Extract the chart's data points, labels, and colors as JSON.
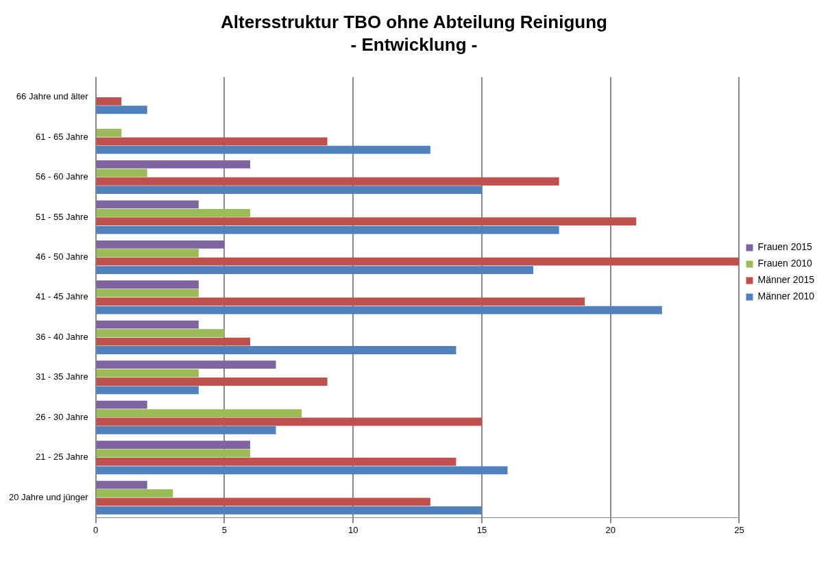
{
  "chart_data": {
    "type": "bar",
    "orientation": "horizontal",
    "title": "Altersstruktur TBO ohne Abteilung Reinigung",
    "subtitle": "- Entwicklung -",
    "categories": [
      "66 Jahre und älter",
      "61 - 65 Jahre",
      "56 - 60 Jahre",
      "51 - 55 Jahre",
      "46 - 50 Jahre",
      "41 - 45 Jahre",
      "36 - 40 Jahre",
      "31 - 35 Jahre",
      "26 - 30 Jahre",
      "21 - 25 Jahre",
      "20 Jahre und jünger"
    ],
    "series": [
      {
        "name": "Frauen 2015",
        "color": "#8064a2",
        "values": [
          0,
          0,
          6,
          4,
          5,
          4,
          4,
          7,
          2,
          6,
          2
        ]
      },
      {
        "name": "Frauen 2010",
        "color": "#9bbb59",
        "values": [
          0,
          1,
          2,
          6,
          4,
          4,
          5,
          4,
          8,
          6,
          3
        ]
      },
      {
        "name": "Männer 2015",
        "color": "#c0504d",
        "values": [
          1,
          9,
          18,
          21,
          25,
          19,
          6,
          9,
          15,
          14,
          13
        ]
      },
      {
        "name": "Männer 2010",
        "color": "#4f81bd",
        "values": [
          2,
          13,
          15,
          18,
          17,
          22,
          14,
          4,
          7,
          16,
          15
        ]
      }
    ],
    "xlim": [
      0,
      25
    ],
    "xticks": [
      0,
      5,
      10,
      15,
      20,
      25
    ],
    "grid": "x",
    "legend": "right"
  }
}
